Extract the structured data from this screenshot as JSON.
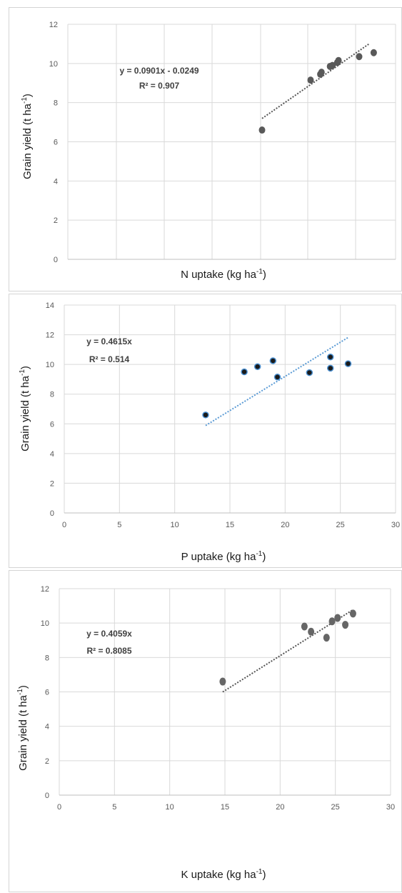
{
  "chart_data": [
    {
      "type": "scatter",
      "title": "",
      "xlabel": "N uptake (kg ha",
      "xlabel_sup": "-1",
      "xlabel_close": ")",
      "ylabel": "Grain yield  (t ha",
      "ylabel_sup": "-1",
      "ylabel_close": ")",
      "ylim": [
        0,
        12
      ],
      "yticks": [
        0,
        2,
        4,
        6,
        8,
        10,
        12
      ],
      "xlim": [
        0,
        120
      ],
      "xticks": [],
      "equation": "y = 0.0901x - 0.0249",
      "r2": "R² = 0.907",
      "x": [
        80,
        100,
        104,
        104.5,
        108,
        109,
        111,
        111.5,
        120,
        126
      ],
      "y": [
        6.6,
        9.15,
        9.45,
        9.55,
        9.85,
        9.9,
        10.05,
        10.15,
        10.35,
        10.55
      ],
      "trendline": {
        "x1": 80,
        "x2": 124,
        "color": "#555555"
      },
      "marker_color": "#595959",
      "grid": true
    },
    {
      "type": "scatter",
      "title": "",
      "xlabel": "P uptake (kg ha",
      "xlabel_sup": "-1",
      "xlabel_close": ")",
      "ylabel": "Grain yield (t ha",
      "ylabel_sup": "-1",
      "ylabel_close": ")",
      "ylim": [
        0,
        14
      ],
      "yticks": [
        0,
        2,
        4,
        6,
        8,
        10,
        12,
        14
      ],
      "xlim": [
        0,
        30
      ],
      "xticks": [
        0,
        5,
        10,
        15,
        20,
        25,
        30
      ],
      "equation": "y = 0.4615x",
      "r2": "R² = 0.514",
      "x": [
        12.8,
        16.3,
        17.5,
        18.9,
        19.3,
        22.2,
        24.1,
        24.1,
        25.7
      ],
      "y": [
        6.6,
        9.5,
        9.85,
        10.25,
        9.15,
        9.45,
        9.75,
        10.5,
        10.05
      ],
      "trendline": {
        "x1": 12.8,
        "x2": 25.7,
        "color": "#5b9bd5"
      },
      "marker_color": "#1a1a1a",
      "marker_ring": "#4a8fd0",
      "grid": true
    },
    {
      "type": "scatter",
      "title": "",
      "xlabel": "K uptake (kg ha",
      "xlabel_sup": "-1",
      "xlabel_close": ")",
      "ylabel": "Grain yield  (t ha",
      "ylabel_sup": "-1",
      "ylabel_close": ")",
      "ylim": [
        0,
        12
      ],
      "yticks": [
        0,
        2,
        4,
        6,
        8,
        10,
        12
      ],
      "xlim": [
        0,
        30
      ],
      "xticks": [
        0,
        5,
        10,
        15,
        20,
        25,
        30
      ],
      "equation": "y = 0.4059x",
      "r2": "R² = 0.8085",
      "x": [
        14.8,
        22.2,
        22.8,
        24.2,
        24.7,
        25.2,
        25.9,
        26.6
      ],
      "y": [
        6.6,
        9.8,
        9.5,
        9.15,
        10.1,
        10.3,
        9.9,
        10.55
      ],
      "trendline": {
        "x1": 14.8,
        "x2": 26.6,
        "color": "#555555"
      },
      "marker_color": "#666666",
      "grid": true
    }
  ]
}
